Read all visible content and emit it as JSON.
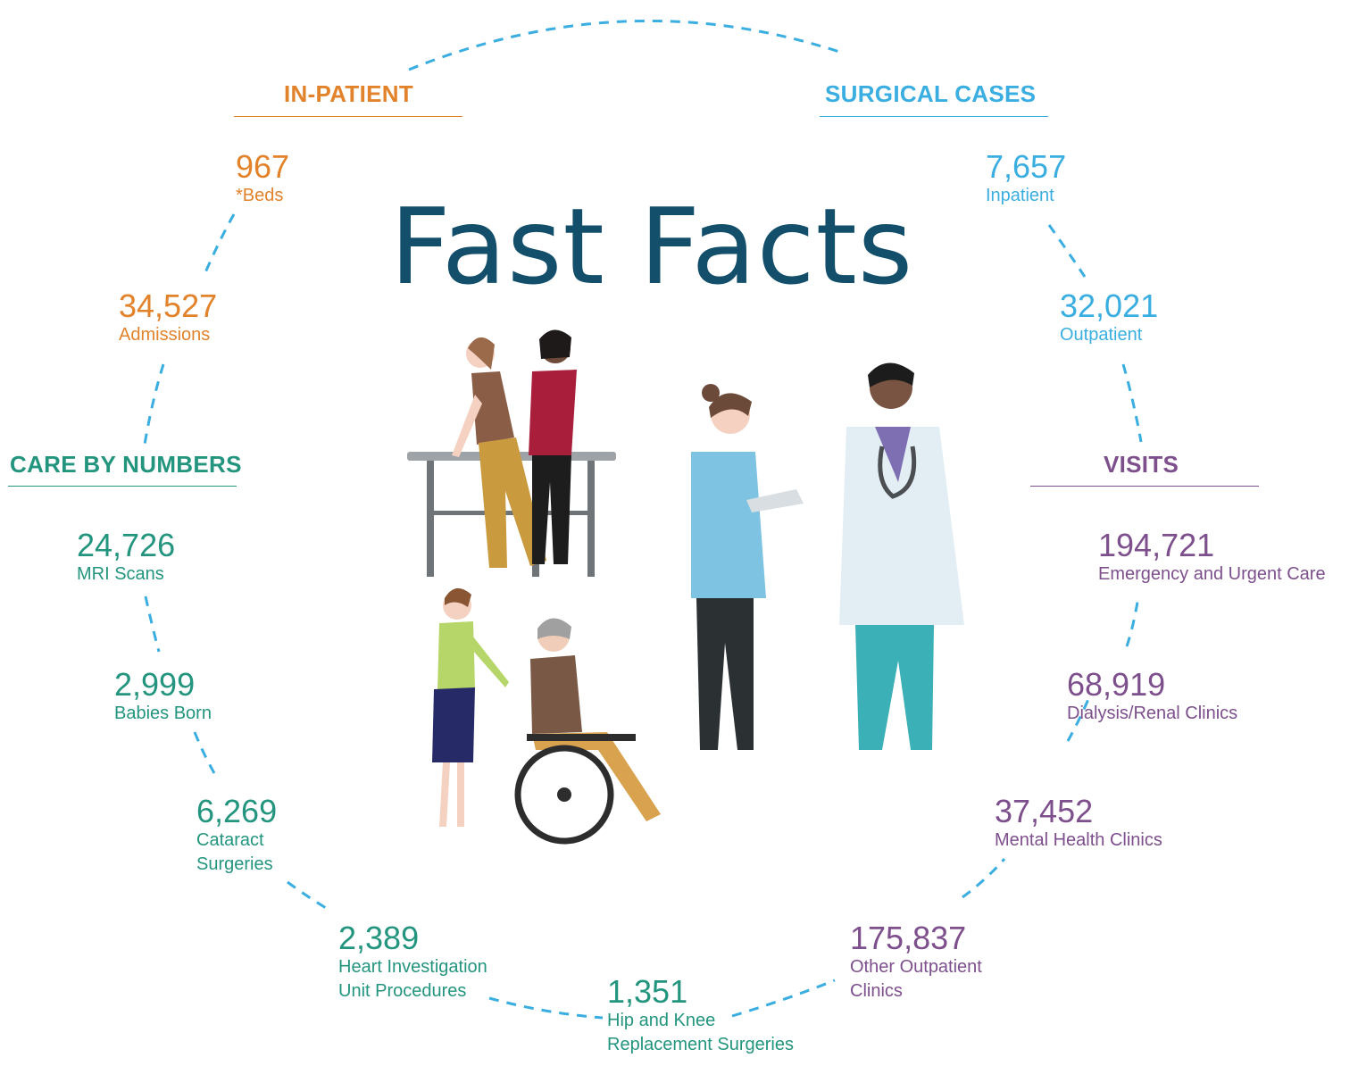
{
  "title": "Fast Facts",
  "colors": {
    "in_patient": "#e2822b",
    "surgical": "#3aaee0",
    "care": "#23957e",
    "visits": "#7d4f8c",
    "title": "#134f6b"
  },
  "sections": {
    "in_patient": "IN-PATIENT",
    "surgical_cases": "SURGICAL CASES",
    "care_by_numbers": "CARE BY NUMBERS",
    "visits": "VISITS"
  },
  "in_patient": {
    "beds": {
      "value": "967",
      "label": "*Beds"
    },
    "admissions": {
      "value": "34,527",
      "label": "Admissions"
    }
  },
  "surgical_cases": {
    "inpatient": {
      "value": "7,657",
      "label": "Inpatient"
    },
    "outpatient": {
      "value": "32,021",
      "label": "Outpatient"
    }
  },
  "care_by_numbers": {
    "mri": {
      "value": "24,726",
      "label": "MRI Scans"
    },
    "babies": {
      "value": "2,999",
      "label": "Babies Born"
    },
    "cataract": {
      "value": "6,269",
      "label": "Cataract\nSurgeries"
    },
    "heart": {
      "value": "2,389",
      "label": "Heart Investigation\nUnit Procedures"
    },
    "hip_knee": {
      "value": "1,351",
      "label": "Hip and Knee\nReplacement Surgeries"
    }
  },
  "visits": {
    "emergency": {
      "value": "194,721",
      "label": "Emergency and Urgent Care"
    },
    "dialysis": {
      "value": "68,919",
      "label": "Dialysis/Renal Clinics"
    },
    "mental": {
      "value": "37,452",
      "label": "Mental Health Clinics"
    },
    "other": {
      "value": "175,837",
      "label": "Other Outpatient\nClinics"
    }
  }
}
